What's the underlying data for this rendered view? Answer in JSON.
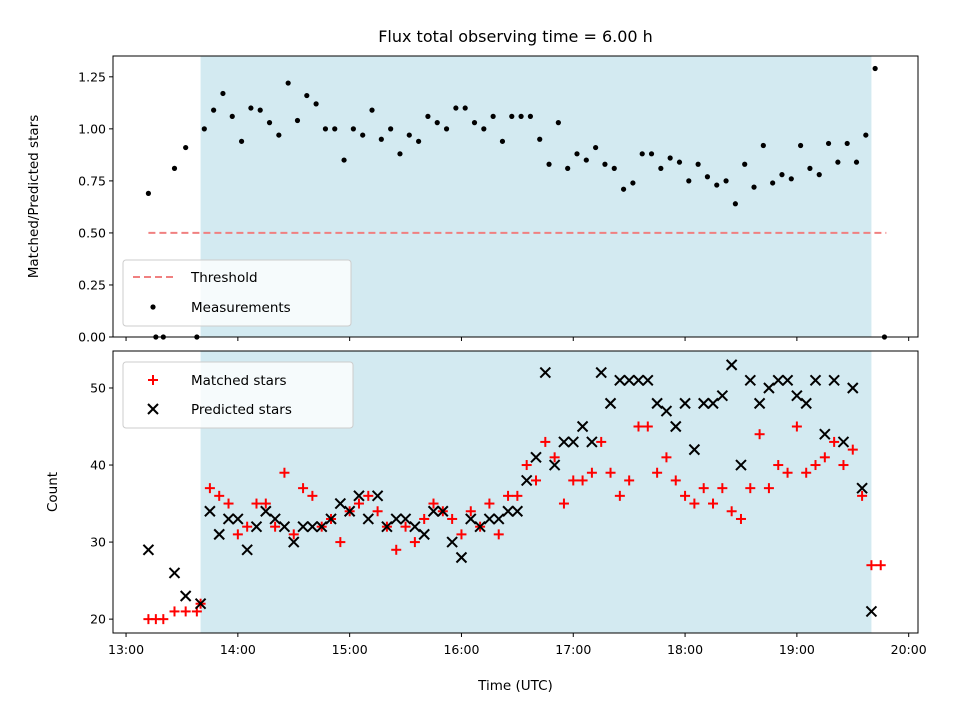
{
  "chart_data": [
    {
      "type": "scatter",
      "title": "Flux total observing time = 6.00 h",
      "xlabel": "",
      "ylabel": "Matched/Predicted stars",
      "ylim": [
        0,
        1.35
      ],
      "yticks": [
        "0.00",
        "0.25",
        "0.50",
        "0.75",
        "1.00",
        "1.25"
      ],
      "xlim": [
        "12:53",
        "20:05"
      ],
      "shaded_region": {
        "start": "13:40",
        "end": "19:40",
        "color": "#d3eaf1"
      },
      "threshold": {
        "name": "Threshold",
        "value": 0.5,
        "x_start": "13:12",
        "x_end": "19:48",
        "color": "#f08080"
      },
      "legend": {
        "location": "lower-left",
        "entries": [
          "Threshold",
          "Measurements"
        ]
      },
      "series": [
        {
          "name": "Measurements",
          "color": "#000000",
          "marker": "dot",
          "points": [
            [
              "13:12",
              0.69
            ],
            [
              "13:16",
              0.0
            ],
            [
              "13:20",
              0.0
            ],
            [
              "13:26",
              0.81
            ],
            [
              "13:32",
              0.91
            ],
            [
              "13:38",
              0.0
            ],
            [
              "13:42",
              1.0
            ],
            [
              "13:47",
              1.09
            ],
            [
              "13:52",
              1.17
            ],
            [
              "13:57",
              1.06
            ],
            [
              "14:02",
              0.94
            ],
            [
              "14:07",
              1.1
            ],
            [
              "14:12",
              1.09
            ],
            [
              "14:17",
              1.03
            ],
            [
              "14:22",
              0.97
            ],
            [
              "14:27",
              1.22
            ],
            [
              "14:32",
              1.04
            ],
            [
              "14:37",
              1.16
            ],
            [
              "14:42",
              1.12
            ],
            [
              "14:47",
              1.0
            ],
            [
              "14:52",
              1.0
            ],
            [
              "14:57",
              0.85
            ],
            [
              "15:02",
              1.0
            ],
            [
              "15:07",
              0.97
            ],
            [
              "15:12",
              1.09
            ],
            [
              "15:17",
              0.95
            ],
            [
              "15:22",
              1.0
            ],
            [
              "15:27",
              0.88
            ],
            [
              "15:32",
              0.97
            ],
            [
              "15:37",
              0.94
            ],
            [
              "15:42",
              1.06
            ],
            [
              "15:47",
              1.03
            ],
            [
              "15:52",
              1.0
            ],
            [
              "15:57",
              1.1
            ],
            [
              "16:02",
              1.1
            ],
            [
              "16:07",
              1.03
            ],
            [
              "16:12",
              1.0
            ],
            [
              "16:17",
              1.06
            ],
            [
              "16:22",
              0.94
            ],
            [
              "16:27",
              1.06
            ],
            [
              "16:32",
              1.06
            ],
            [
              "16:37",
              1.06
            ],
            [
              "16:42",
              0.95
            ],
            [
              "16:47",
              0.83
            ],
            [
              "16:52",
              1.03
            ],
            [
              "16:57",
              0.81
            ],
            [
              "17:02",
              0.88
            ],
            [
              "17:07",
              0.85
            ],
            [
              "17:12",
              0.91
            ],
            [
              "17:17",
              0.83
            ],
            [
              "17:22",
              0.81
            ],
            [
              "17:27",
              0.71
            ],
            [
              "17:32",
              0.74
            ],
            [
              "17:37",
              0.88
            ],
            [
              "17:42",
              0.88
            ],
            [
              "17:47",
              0.81
            ],
            [
              "17:52",
              0.86
            ],
            [
              "17:57",
              0.84
            ],
            [
              "18:02",
              0.75
            ],
            [
              "18:07",
              0.83
            ],
            [
              "18:12",
              0.77
            ],
            [
              "18:17",
              0.73
            ],
            [
              "18:22",
              0.75
            ],
            [
              "18:27",
              0.64
            ],
            [
              "18:32",
              0.83
            ],
            [
              "18:37",
              0.72
            ],
            [
              "18:42",
              0.92
            ],
            [
              "18:47",
              0.74
            ],
            [
              "18:52",
              0.78
            ],
            [
              "18:57",
              0.76
            ],
            [
              "19:02",
              0.92
            ],
            [
              "19:07",
              0.81
            ],
            [
              "19:12",
              0.78
            ],
            [
              "19:17",
              0.93
            ],
            [
              "19:22",
              0.84
            ],
            [
              "19:27",
              0.93
            ],
            [
              "19:32",
              0.84
            ],
            [
              "19:37",
              0.97
            ],
            [
              "19:42",
              1.29
            ],
            [
              "19:47",
              0.0
            ]
          ]
        }
      ]
    },
    {
      "type": "scatter",
      "title": "",
      "xlabel": "Time (UTC)",
      "ylabel": "Count",
      "ylim": [
        18.2,
        54.8
      ],
      "yticks": [
        "20",
        "30",
        "40",
        "50"
      ],
      "xlim": [
        "12:53",
        "20:05"
      ],
      "xticks": [
        "13:00",
        "14:00",
        "15:00",
        "16:00",
        "17:00",
        "18:00",
        "19:00",
        "20:00"
      ],
      "shaded_region": {
        "start": "13:40",
        "end": "19:40",
        "color": "#d3eaf1"
      },
      "legend": {
        "location": "top-left",
        "entries": [
          "Matched stars",
          "Predicted stars"
        ]
      },
      "series": [
        {
          "name": "Matched stars",
          "color": "#ff0000",
          "marker": "plus",
          "points": [
            [
              "13:12",
              20
            ],
            [
              "13:16",
              20
            ],
            [
              "13:20",
              20
            ],
            [
              "13:26",
              21
            ],
            [
              "13:32",
              21
            ],
            [
              "13:38",
              21
            ],
            [
              "13:40",
              22
            ],
            [
              "13:45",
              37
            ],
            [
              "13:50",
              36
            ],
            [
              "13:55",
              35
            ],
            [
              "14:00",
              31
            ],
            [
              "14:05",
              32
            ],
            [
              "14:10",
              35
            ],
            [
              "14:15",
              35
            ],
            [
              "14:20",
              32
            ],
            [
              "14:25",
              39
            ],
            [
              "14:30",
              31
            ],
            [
              "14:35",
              37
            ],
            [
              "14:40",
              36
            ],
            [
              "14:45",
              32
            ],
            [
              "14:50",
              33
            ],
            [
              "14:55",
              30
            ],
            [
              "15:00",
              34
            ],
            [
              "15:05",
              35
            ],
            [
              "15:10",
              36
            ],
            [
              "15:15",
              34
            ],
            [
              "15:20",
              32
            ],
            [
              "15:25",
              29
            ],
            [
              "15:30",
              32
            ],
            [
              "15:35",
              30
            ],
            [
              "15:40",
              33
            ],
            [
              "15:45",
              35
            ],
            [
              "15:50",
              34
            ],
            [
              "15:55",
              33
            ],
            [
              "16:00",
              31
            ],
            [
              "16:05",
              34
            ],
            [
              "16:10",
              32
            ],
            [
              "16:15",
              35
            ],
            [
              "16:20",
              31
            ],
            [
              "16:25",
              36
            ],
            [
              "16:30",
              36
            ],
            [
              "16:35",
              40
            ],
            [
              "16:40",
              38
            ],
            [
              "16:45",
              43
            ],
            [
              "16:50",
              41
            ],
            [
              "16:55",
              35
            ],
            [
              "17:00",
              38
            ],
            [
              "17:05",
              38
            ],
            [
              "17:10",
              39
            ],
            [
              "17:15",
              43
            ],
            [
              "17:20",
              39
            ],
            [
              "17:25",
              36
            ],
            [
              "17:30",
              38
            ],
            [
              "17:35",
              45
            ],
            [
              "17:40",
              45
            ],
            [
              "17:45",
              39
            ],
            [
              "17:50",
              41
            ],
            [
              "17:55",
              38
            ],
            [
              "18:00",
              36
            ],
            [
              "18:05",
              35
            ],
            [
              "18:10",
              37
            ],
            [
              "18:15",
              35
            ],
            [
              "18:20",
              37
            ],
            [
              "18:25",
              34
            ],
            [
              "18:30",
              33
            ],
            [
              "18:35",
              37
            ],
            [
              "18:40",
              44
            ],
            [
              "18:45",
              37
            ],
            [
              "18:50",
              40
            ],
            [
              "18:55",
              39
            ],
            [
              "19:00",
              45
            ],
            [
              "19:05",
              39
            ],
            [
              "19:10",
              40
            ],
            [
              "19:15",
              41
            ],
            [
              "19:20",
              43
            ],
            [
              "19:25",
              40
            ],
            [
              "19:30",
              42
            ],
            [
              "19:35",
              36
            ],
            [
              "19:40",
              27
            ],
            [
              "19:45",
              27
            ]
          ]
        },
        {
          "name": "Predicted stars",
          "color": "#000000",
          "marker": "x",
          "points": [
            [
              "13:12",
              29
            ],
            [
              "13:26",
              26
            ],
            [
              "13:32",
              23
            ],
            [
              "13:40",
              22
            ],
            [
              "13:45",
              34
            ],
            [
              "13:50",
              31
            ],
            [
              "13:55",
              33
            ],
            [
              "14:00",
              33
            ],
            [
              "14:05",
              29
            ],
            [
              "14:10",
              32
            ],
            [
              "14:15",
              34
            ],
            [
              "14:20",
              33
            ],
            [
              "14:25",
              32
            ],
            [
              "14:30",
              30
            ],
            [
              "14:35",
              32
            ],
            [
              "14:40",
              32
            ],
            [
              "14:45",
              32
            ],
            [
              "14:50",
              33
            ],
            [
              "14:55",
              35
            ],
            [
              "15:00",
              34
            ],
            [
              "15:05",
              36
            ],
            [
              "15:10",
              33
            ],
            [
              "15:15",
              36
            ],
            [
              "15:20",
              32
            ],
            [
              "15:25",
              33
            ],
            [
              "15:30",
              33
            ],
            [
              "15:35",
              32
            ],
            [
              "15:40",
              31
            ],
            [
              "15:45",
              34
            ],
            [
              "15:50",
              34
            ],
            [
              "15:55",
              30
            ],
            [
              "16:00",
              28
            ],
            [
              "16:05",
              33
            ],
            [
              "16:10",
              32
            ],
            [
              "16:15",
              33
            ],
            [
              "16:20",
              33
            ],
            [
              "16:25",
              34
            ],
            [
              "16:30",
              34
            ],
            [
              "16:35",
              38
            ],
            [
              "16:40",
              41
            ],
            [
              "16:45",
              52
            ],
            [
              "16:50",
              40
            ],
            [
              "16:55",
              43
            ],
            [
              "17:00",
              43
            ],
            [
              "17:05",
              45
            ],
            [
              "17:10",
              43
            ],
            [
              "17:15",
              52
            ],
            [
              "17:20",
              48
            ],
            [
              "17:25",
              51
            ],
            [
              "17:30",
              51
            ],
            [
              "17:35",
              51
            ],
            [
              "17:40",
              51
            ],
            [
              "17:45",
              48
            ],
            [
              "17:50",
              47
            ],
            [
              "17:55",
              45
            ],
            [
              "18:00",
              48
            ],
            [
              "18:05",
              42
            ],
            [
              "18:10",
              48
            ],
            [
              "18:15",
              48
            ],
            [
              "18:20",
              49
            ],
            [
              "18:25",
              53
            ],
            [
              "18:30",
              40
            ],
            [
              "18:35",
              51
            ],
            [
              "18:40",
              48
            ],
            [
              "18:45",
              50
            ],
            [
              "18:50",
              51
            ],
            [
              "18:55",
              51
            ],
            [
              "19:00",
              49
            ],
            [
              "19:05",
              48
            ],
            [
              "19:10",
              51
            ],
            [
              "19:15",
              44
            ],
            [
              "19:20",
              51
            ],
            [
              "19:25",
              43
            ],
            [
              "19:30",
              50
            ],
            [
              "19:35",
              37
            ],
            [
              "19:40",
              21
            ]
          ]
        }
      ]
    }
  ]
}
